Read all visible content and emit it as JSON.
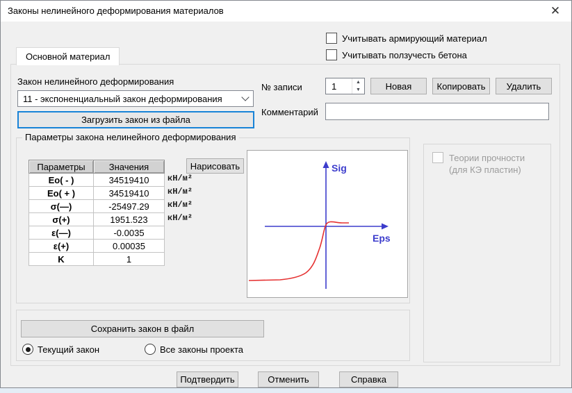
{
  "window": {
    "title": "Законы нелинейного деформирования материалов",
    "close_glyph": "✕"
  },
  "colors": {
    "accent_focus": "#1883d7",
    "axis_blue": "#3c3ccc",
    "curve_red": "#e53030",
    "dialog_bg": "#f0f0f0"
  },
  "checkboxes": {
    "reinforcing_label": "Учитывать армирующий материал",
    "creep_label": "Учитывать ползучесть бетона"
  },
  "tab": {
    "label": "Основной материал"
  },
  "law": {
    "label": "Закон нелинейного деформирования",
    "selected_option": "11 - экспоненциальный закон деформирования",
    "load_button": "Загрузить закон из файла"
  },
  "record": {
    "number_label": "№ записи",
    "number_value": "1",
    "spin_up": "▲",
    "spin_down": "▼",
    "new_button": "Новая",
    "copy_button": "Копировать",
    "delete_button": "Удалить",
    "comment_label": "Комментарий",
    "comment_value": ""
  },
  "params": {
    "group_title": "Параметры закона нелинейного деформирования",
    "draw_button": "Нарисовать",
    "table": {
      "headers": [
        "Параметры",
        "Значения"
      ],
      "rows": [
        {
          "name": "Eo( - )",
          "value": "34519410",
          "unit": "кН/м²"
        },
        {
          "name": "Eo( + )",
          "value": "34519410",
          "unit": "кН/м²"
        },
        {
          "name": "σ(—)",
          "value": "-25497.29",
          "unit": "кН/м²"
        },
        {
          "name": "σ(+)",
          "value": "1951.523",
          "unit": "кН/м²"
        },
        {
          "name": "ε(—)",
          "value": "-0.0035",
          "unit": ""
        },
        {
          "name": "ε(+)",
          "value": "0.00035",
          "unit": ""
        },
        {
          "name": "K",
          "value": "1",
          "unit": ""
        }
      ]
    }
  },
  "plot": {
    "y_axis_label": "Sig",
    "x_axis_label": "Eps",
    "curve_type": "exponential",
    "axis_color": "#3c3ccc",
    "curve_color": "#e53030"
  },
  "strength": {
    "label_line1": "Теории прочности",
    "label_line2": "(для КЭ пластин)"
  },
  "save": {
    "button": "Сохранить закон в файл",
    "radio_current": "Текущий закон",
    "radio_all": "Все законы проекта"
  },
  "footer": {
    "confirm": "Подтвердить",
    "cancel": "Отменить",
    "help": "Справка"
  }
}
